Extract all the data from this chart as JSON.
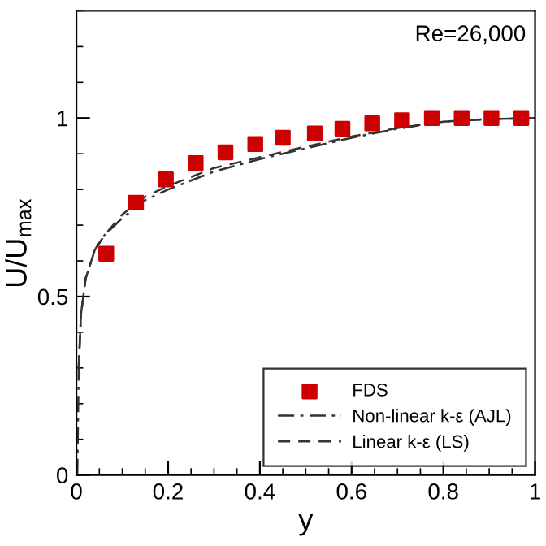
{
  "chart_data": {
    "type": "line",
    "xlabel": "y",
    "ylabel": "U/U$_{max}$",
    "annotations": [
      "Re=26,000"
    ],
    "xlim": [
      0,
      1
    ],
    "ylim": [
      0,
      1.3
    ],
    "xticks": [
      0,
      0.2,
      0.4,
      0.6,
      0.8,
      1
    ],
    "yticks": [
      0,
      0.5,
      1
    ],
    "grid": false,
    "legend": "bottom right",
    "series": [
      {
        "name": "FDS",
        "type": "scatter",
        "marker": "square",
        "color": "#cc0000",
        "x": [
          0.065,
          0.13,
          0.195,
          0.26,
          0.325,
          0.39,
          0.45,
          0.52,
          0.58,
          0.645,
          0.71,
          0.775,
          0.84,
          0.905,
          0.97
        ],
        "values": [
          0.62,
          0.763,
          0.828,
          0.874,
          0.904,
          0.927,
          0.945,
          0.957,
          0.97,
          0.985,
          0.994,
          1.0,
          1.0,
          1.0,
          1.0
        ]
      },
      {
        "name": "Non-linear k-ε (AJL)",
        "line_style": "dashdot",
        "color": "#333333",
        "x": [
          0.002,
          0.005,
          0.01,
          0.02,
          0.04,
          0.06,
          0.1,
          0.15,
          0.2,
          0.3,
          0.4,
          0.5,
          0.6,
          0.7,
          0.8,
          0.9,
          1.0
        ],
        "values": [
          0.0,
          0.3,
          0.45,
          0.55,
          0.63,
          0.67,
          0.72,
          0.77,
          0.8,
          0.85,
          0.885,
          0.915,
          0.945,
          0.97,
          0.99,
          0.997,
          1.0
        ]
      },
      {
        "name": "Linear k-ε (LS)",
        "line_style": "dashed",
        "color": "#333333",
        "x": [
          0.005,
          0.01,
          0.02,
          0.04,
          0.06,
          0.1,
          0.15,
          0.2,
          0.3,
          0.4,
          0.5,
          0.6,
          0.7,
          0.8,
          0.9,
          0.99
        ],
        "values": [
          0.3,
          0.45,
          0.55,
          0.63,
          0.67,
          0.73,
          0.78,
          0.81,
          0.86,
          0.89,
          0.92,
          0.948,
          0.972,
          0.99,
          0.997,
          1.0
        ]
      }
    ]
  }
}
